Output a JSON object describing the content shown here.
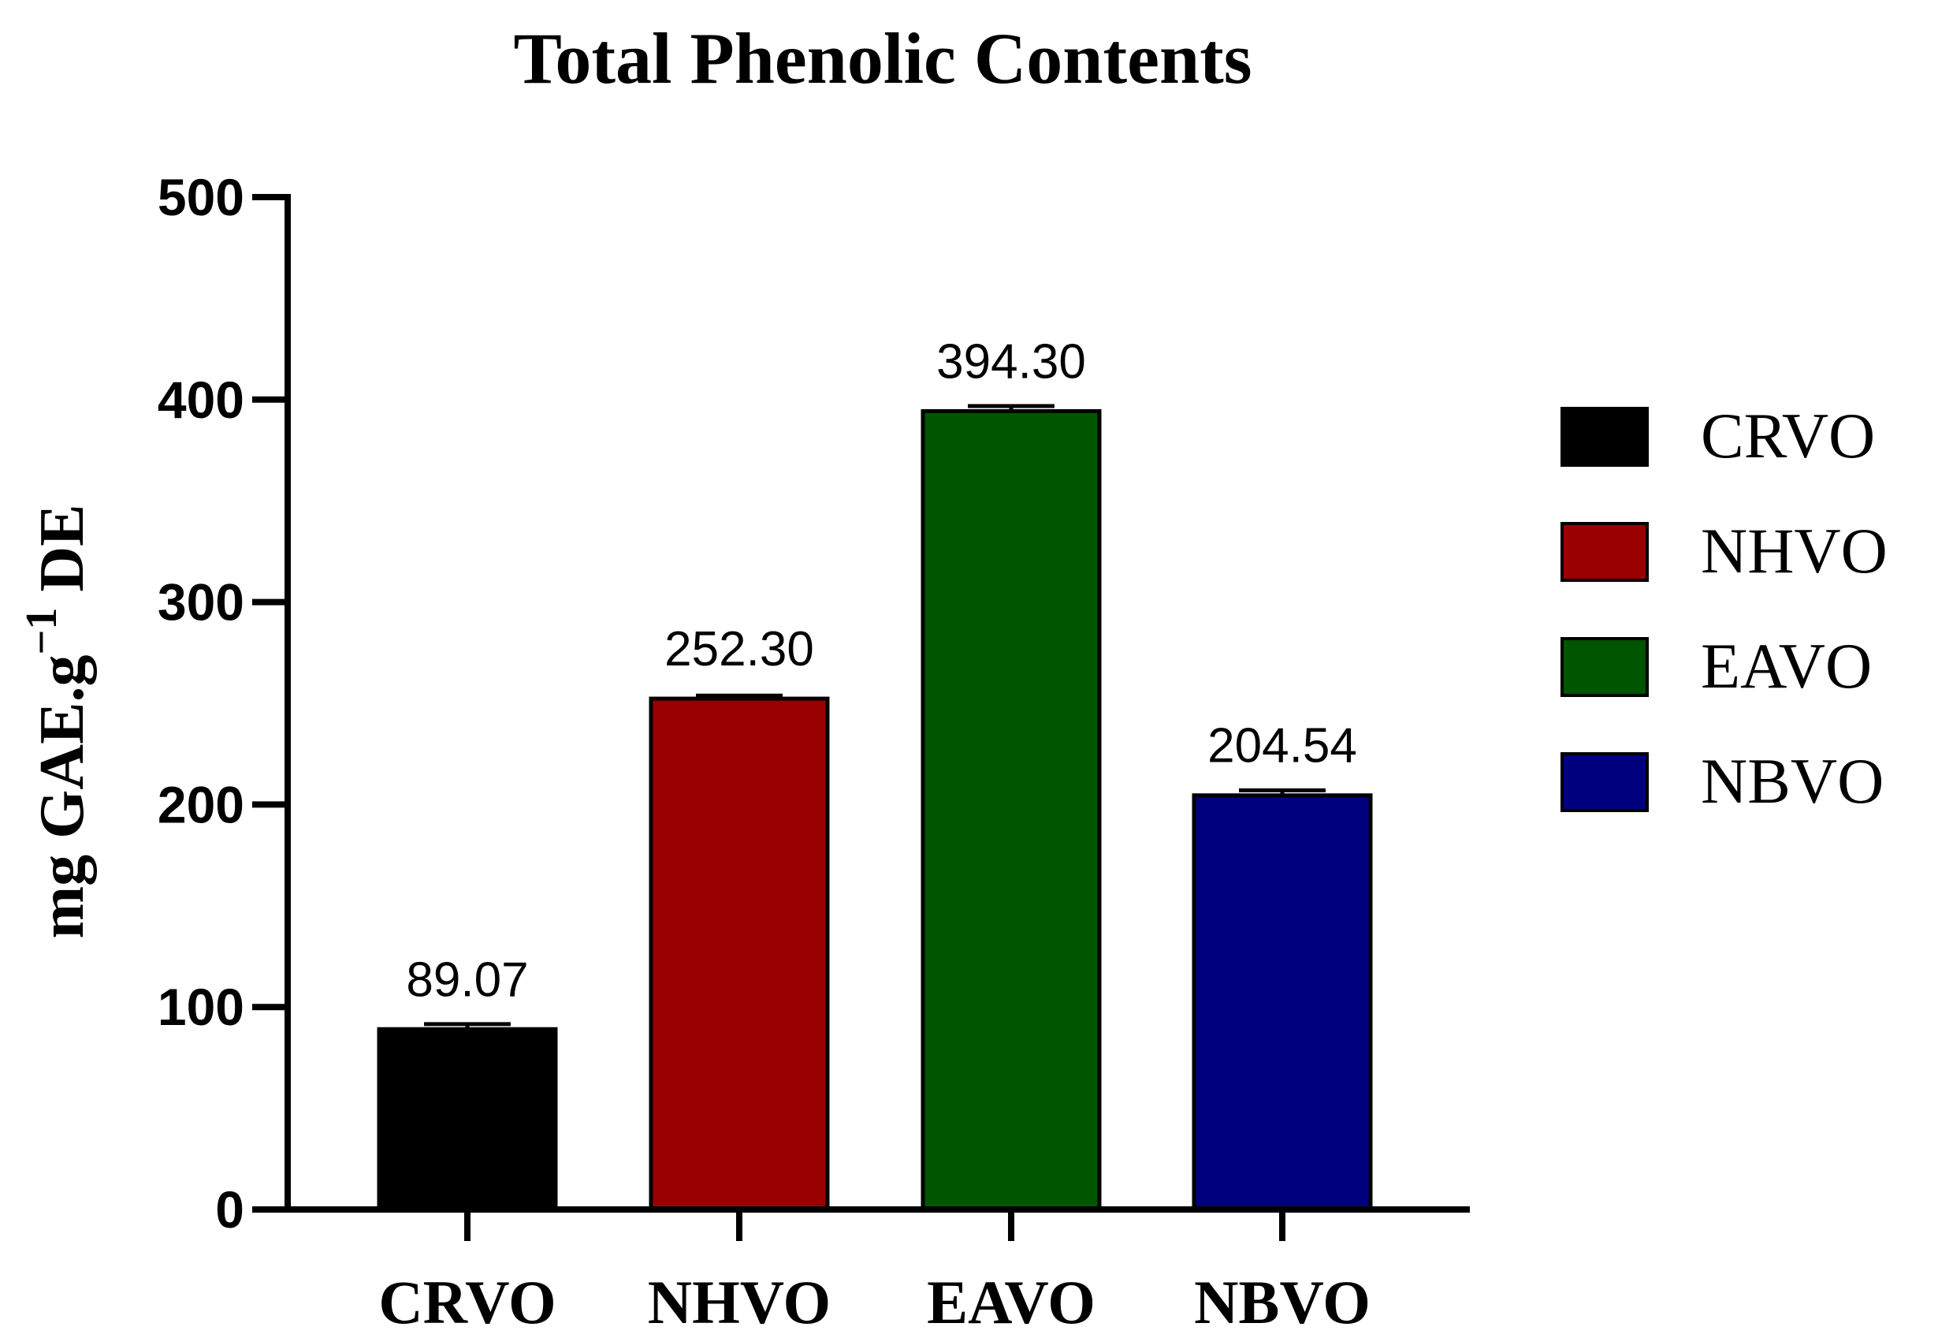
{
  "chart_data": {
    "type": "bar",
    "title": "Total Phenolic Contents",
    "ylabel_main": "mg GAE.g",
    "ylabel_sup": "−1",
    "ylabel_tail": " DE",
    "xlabel": "",
    "ylim": [
      0,
      500
    ],
    "yticks": [
      0,
      100,
      200,
      300,
      400,
      500
    ],
    "categories": [
      "CRVO",
      "NHVO",
      "EAVO",
      "NBVO"
    ],
    "values": [
      89.07,
      252.3,
      394.3,
      204.54
    ],
    "value_labels": [
      "89.07",
      "252.30",
      "394.30",
      "204.54"
    ],
    "error": [
      2.5,
      1.5,
      2.5,
      2.5
    ],
    "colors": [
      "#000000",
      "#9b0000",
      "#005500",
      "#00007f"
    ],
    "legend": {
      "placement": "right",
      "entries": [
        "CRVO",
        "NHVO",
        "EAVO",
        "NBVO"
      ]
    },
    "grid": false
  }
}
